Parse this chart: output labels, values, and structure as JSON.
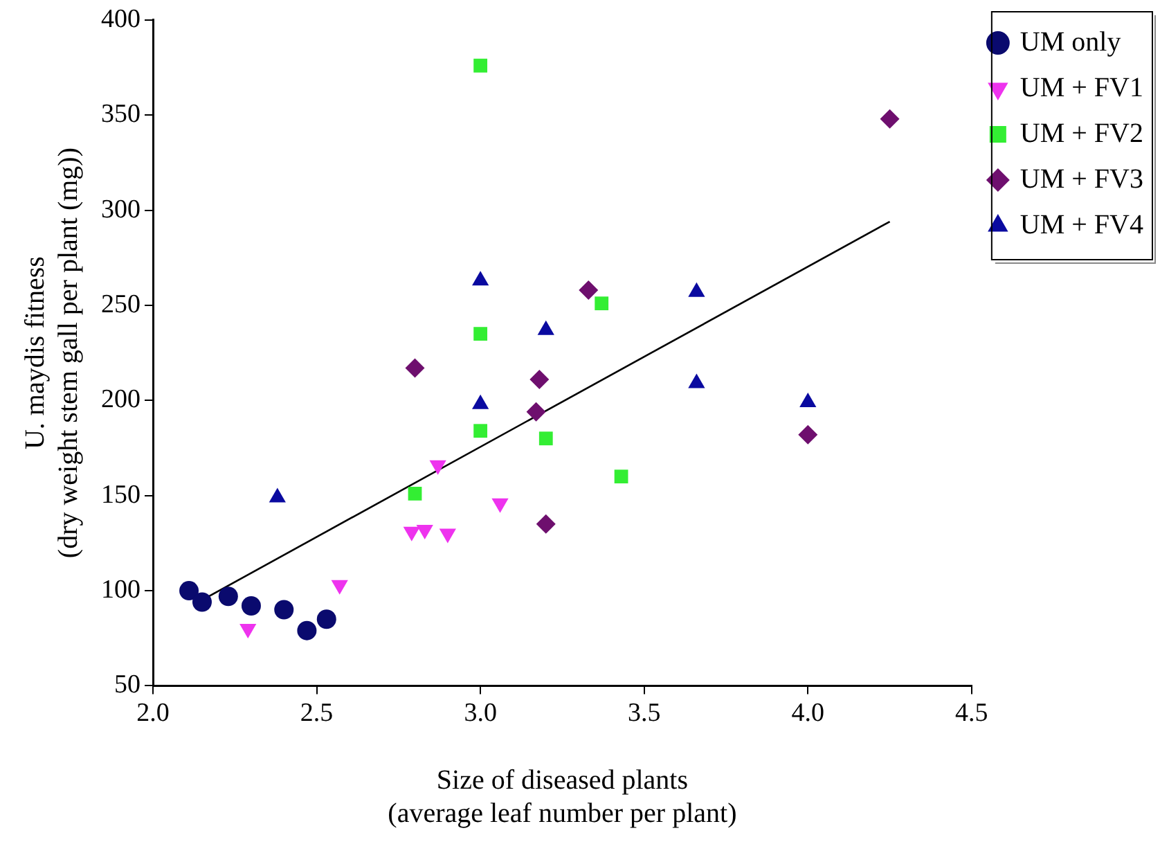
{
  "chart_data": {
    "type": "scatter",
    "xlabel": "Size of diseased plants\n(average leaf number per plant)",
    "ylabel": "U. maydis fitness\n(dry weight stem gall per plant (mg))",
    "xlim": [
      2.0,
      4.5
    ],
    "xticks": [
      {
        "value": 2,
        "label": "2.0"
      },
      {
        "value": 2.5,
        "label": "2.5"
      },
      {
        "value": 3,
        "label": "3.0"
      },
      {
        "value": 3.5,
        "label": "3.5"
      },
      {
        "value": 4,
        "label": "4.0"
      },
      {
        "value": 4.5,
        "label": "4.5"
      }
    ],
    "ylim": [
      50,
      400
    ],
    "yticks": [
      50,
      100,
      150,
      200,
      250,
      300,
      350,
      400
    ],
    "grid": false,
    "legend": "top right",
    "series": [
      {
        "name": "UM only",
        "color": "#0a0a6e",
        "marker": "circle",
        "x": [
          2.11,
          2.15,
          2.23,
          2.3,
          2.4,
          2.47,
          2.53
        ],
        "values": [
          100,
          94,
          97,
          92,
          90,
          79,
          85
        ]
      },
      {
        "name": "UM + FV1",
        "color": "#ee33ee",
        "marker": "triangle-down",
        "x": [
          2.29,
          2.57,
          2.79,
          2.83,
          2.9,
          3.06,
          2.87
        ],
        "values": [
          80,
          103,
          131,
          132,
          130,
          146,
          166
        ]
      },
      {
        "name": "UM + FV2",
        "color": "#33ee33",
        "marker": "square",
        "x": [
          2.8,
          3.43,
          3.0,
          3.0,
          3.37,
          3.0,
          3.2
        ],
        "values": [
          151,
          160,
          376,
          235,
          251,
          184,
          180
        ]
      },
      {
        "name": "UM + FV3",
        "color": "#6e0f6e",
        "marker": "diamond",
        "x": [
          3.2,
          2.8,
          3.33,
          3.18,
          3.17,
          4.0,
          4.25
        ],
        "values": [
          135,
          217,
          258,
          211,
          194,
          182,
          348
        ]
      },
      {
        "name": "UM + FV4",
        "color": "#0a0aa0",
        "marker": "triangle",
        "x": [
          2.38,
          3.0,
          3.2,
          3.66,
          3.0,
          3.66,
          4.0
        ],
        "values": [
          149,
          263,
          237,
          257,
          198,
          209,
          199
        ]
      },
      {
        "type": "line",
        "color": "#000000",
        "marker": "none",
        "x": [
          2.17,
          4.25
        ],
        "values": [
          97,
          294
        ]
      }
    ]
  }
}
